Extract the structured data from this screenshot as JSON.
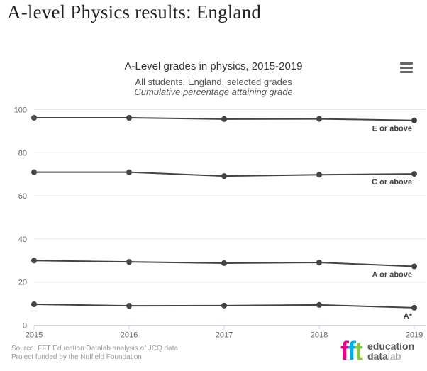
{
  "page": {
    "title": "A-level Physics results: England"
  },
  "chart": {
    "title": "A-Level grades in physics, 2015-2019",
    "subtitle": "All students, England, selected grades",
    "subtitle_italic": "Cumulative percentage attaining grade",
    "menu_icon": "hamburger-menu-icon",
    "source_line1": "Source: FFT Education Datalab analysis of JCQ data",
    "source_line2": "Project funded by the Nuffield Foundation"
  },
  "chart_data": {
    "type": "line",
    "title": "A-Level grades in physics, 2015-2019",
    "x": [
      2015,
      2016,
      2017,
      2018,
      2019
    ],
    "series": [
      {
        "name": "E or above",
        "values": [
          96.2,
          96.2,
          95.6,
          95.7,
          95.0
        ]
      },
      {
        "name": "C or above",
        "values": [
          71.0,
          71.0,
          69.2,
          69.8,
          70.2
        ]
      },
      {
        "name": "A or above",
        "values": [
          30.0,
          29.4,
          28.8,
          29.1,
          27.3
        ]
      },
      {
        "name": "A*",
        "values": [
          9.7,
          9.0,
          9.1,
          9.4,
          8.1
        ]
      }
    ],
    "xlabel": "",
    "ylabel": "Cumulative percentage attaining grade",
    "ylim": [
      0,
      100
    ],
    "yticks": [
      0,
      20,
      40,
      60,
      80,
      100
    ],
    "grid": true,
    "legend_position": "end-of-line-labels",
    "line_color": "#434343",
    "marker_color": "#434343",
    "grid_color": "#e6e6e6",
    "axis_line_color": "#ccd6eb",
    "axis_text_color": "#666666",
    "series_label_color": "#424242"
  },
  "logo": {
    "letters": [
      {
        "char": "f",
        "color": "#ec008c"
      },
      {
        "char": "f",
        "color": "#00aeef"
      },
      {
        "char": "t",
        "color": "#8dc63f"
      }
    ],
    "word1": "education",
    "word2_bold": "data",
    "word2_light": "lab"
  }
}
